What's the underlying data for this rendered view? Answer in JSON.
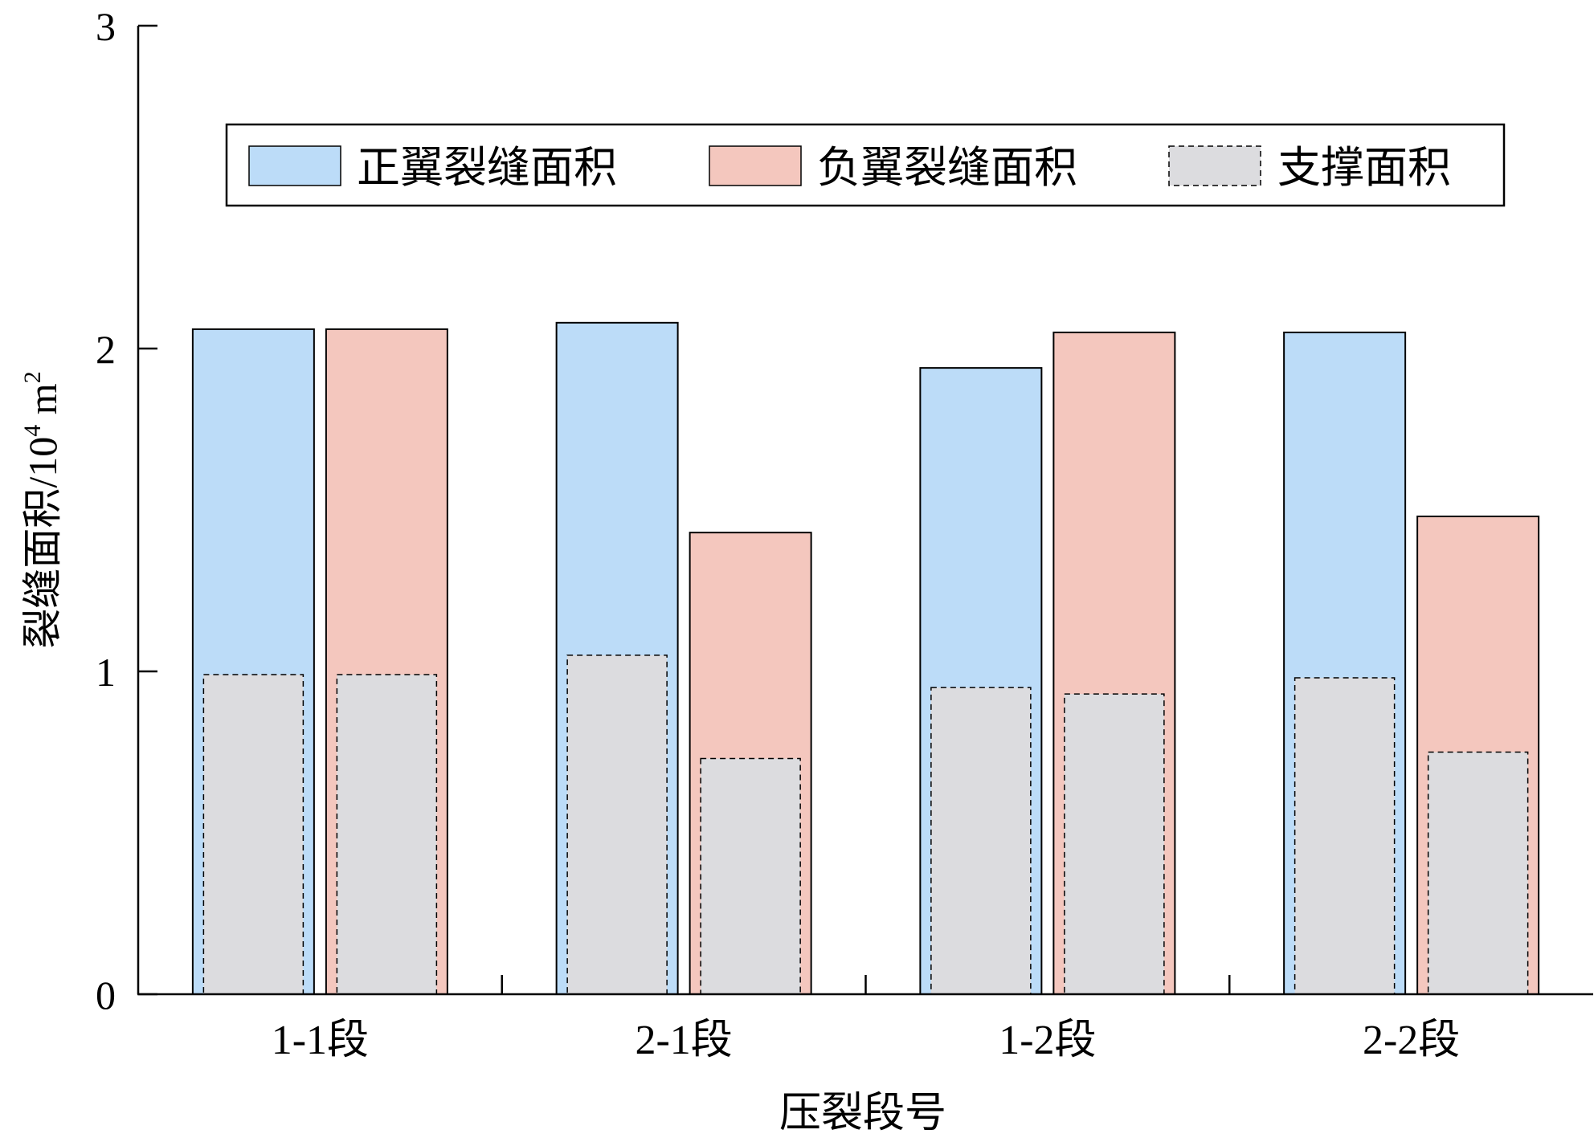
{
  "chart_data": {
    "type": "bar",
    "xlabel": "压裂段号",
    "ylabel": "裂缝面积/10⁴ m²",
    "ylabel_parts": {
      "main": "裂缝面积/10",
      "sup1": "4",
      "unit": " m",
      "sup2": "2"
    },
    "ylim": [
      0,
      3
    ],
    "yticks": [
      "0",
      "1",
      "2",
      "3"
    ],
    "categories": [
      "1-1段",
      "2-1段",
      "1-2段",
      "2-2段"
    ],
    "grid": false,
    "legend_position": "top",
    "series": [
      {
        "name": "正翼裂缝面积",
        "role": "total",
        "side": "left",
        "color": "#bcdcf8",
        "values": [
          2.06,
          2.08,
          1.94,
          2.05
        ]
      },
      {
        "name": "负翼裂缝面积",
        "role": "total",
        "side": "right",
        "color": "#f4c7be",
        "values": [
          2.06,
          1.43,
          2.05,
          1.48
        ]
      },
      {
        "name": "支撑面积",
        "role": "inner",
        "color": "#dcdcdf",
        "values_left": [
          0.99,
          1.05,
          0.95,
          0.98
        ],
        "values_right": [
          0.99,
          0.73,
          0.93,
          0.75
        ]
      }
    ]
  }
}
